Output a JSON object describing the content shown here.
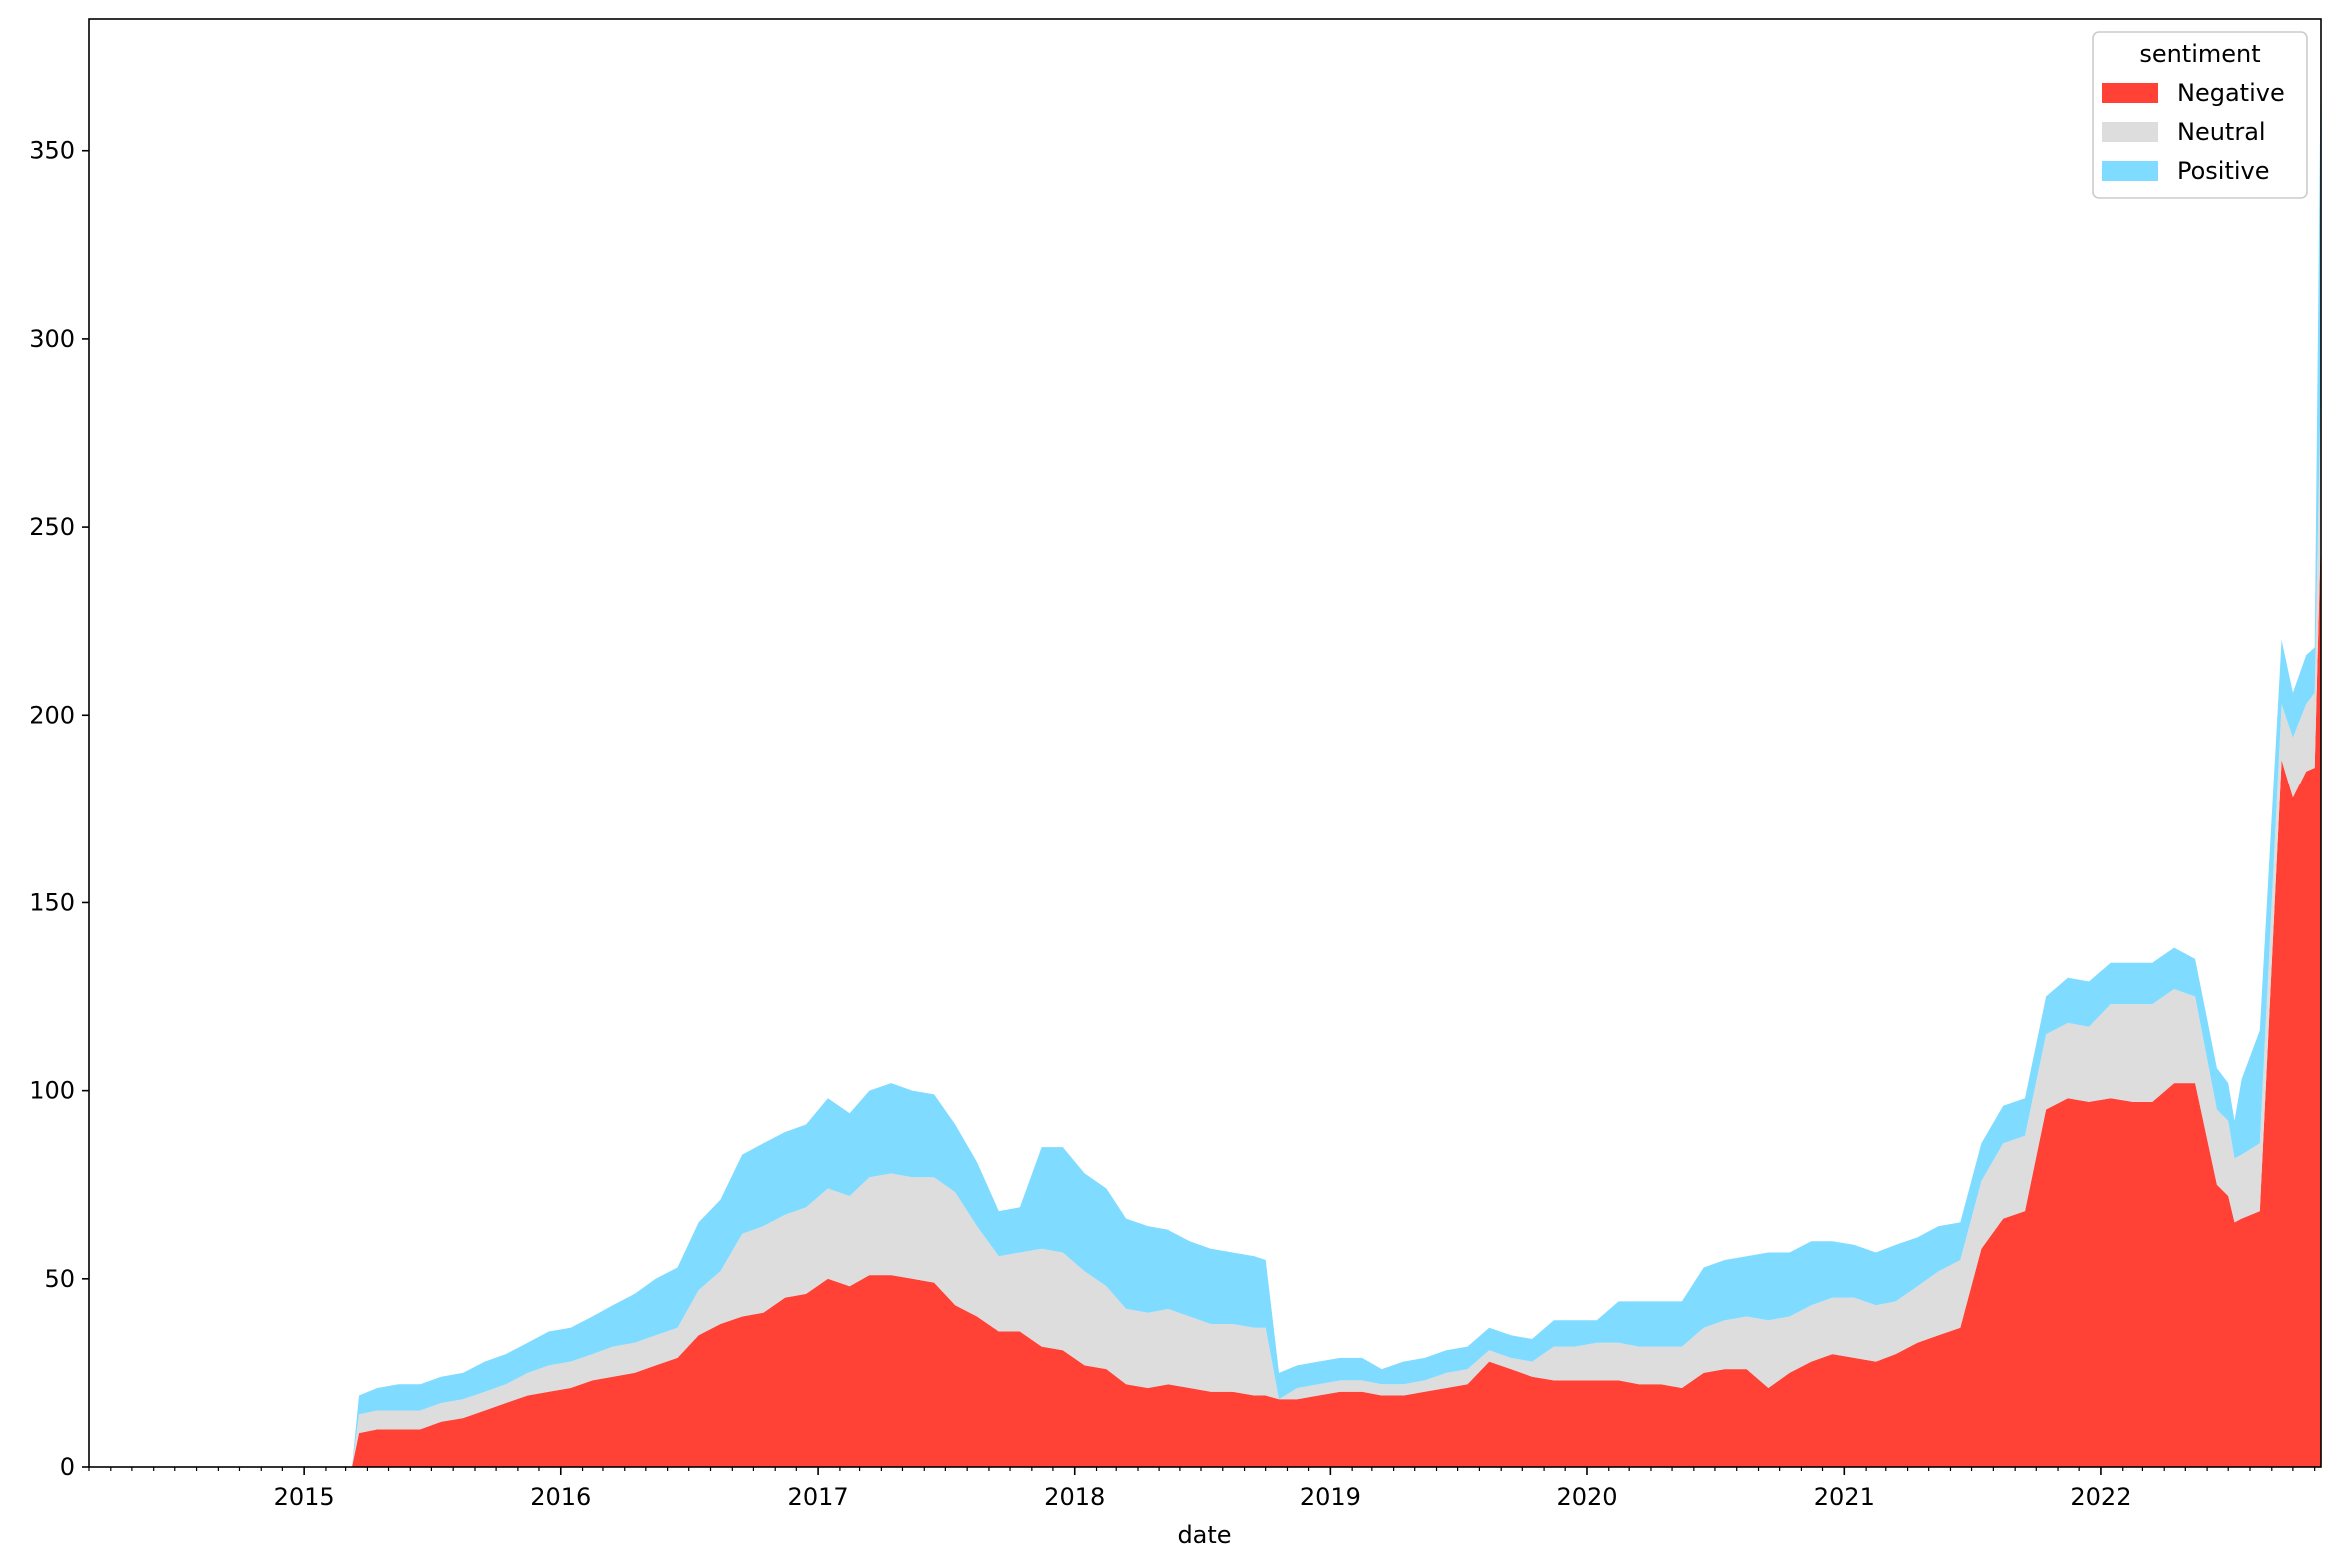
{
  "chart_data": {
    "type": "area",
    "stacked": true,
    "xlabel": "date",
    "ylabel": "",
    "title": "",
    "xlim": [
      "2014-03-01",
      "2022-11-10"
    ],
    "ylim": [
      0,
      385
    ],
    "y_ticks": [
      0,
      50,
      100,
      150,
      200,
      250,
      300,
      350
    ],
    "x_ticks": [
      "2015",
      "2016",
      "2017",
      "2018",
      "2019",
      "2020",
      "2021",
      "2022"
    ],
    "grid": false,
    "legend": {
      "title": "sentiment",
      "position": "top-right",
      "entries": [
        "Negative",
        "Neutral",
        "Positive"
      ]
    },
    "colors": {
      "Negative": "#ff4136",
      "Neutral": "#dddddd",
      "Positive": "#7fdbff"
    },
    "x": [
      "2015-03-10",
      "2015-03-20",
      "2015-04-15",
      "2015-05-15",
      "2015-06-15",
      "2015-07-15",
      "2015-08-15",
      "2015-09-15",
      "2015-10-15",
      "2015-11-15",
      "2015-12-15",
      "2016-01-15",
      "2016-02-15",
      "2016-03-15",
      "2016-04-15",
      "2016-05-15",
      "2016-06-15",
      "2016-07-15",
      "2016-08-15",
      "2016-09-15",
      "2016-10-15",
      "2016-11-15",
      "2016-12-15",
      "2017-01-15",
      "2017-02-15",
      "2017-03-15",
      "2017-04-15",
      "2017-05-15",
      "2017-06-15",
      "2017-07-15",
      "2017-08-15",
      "2017-09-15",
      "2017-10-15",
      "2017-11-15",
      "2017-12-15",
      "2018-01-15",
      "2018-02-15",
      "2018-03-15",
      "2018-04-15",
      "2018-05-15",
      "2018-06-15",
      "2018-07-15",
      "2018-08-15",
      "2018-09-15",
      "2018-10-01",
      "2018-10-20",
      "2018-11-15",
      "2018-12-15",
      "2019-01-15",
      "2019-02-15",
      "2019-03-15",
      "2019-04-15",
      "2019-05-15",
      "2019-06-15",
      "2019-07-15",
      "2019-08-15",
      "2019-09-15",
      "2019-10-15",
      "2019-11-15",
      "2019-12-15",
      "2020-01-15",
      "2020-02-15",
      "2020-03-15",
      "2020-04-15",
      "2020-05-15",
      "2020-06-15",
      "2020-07-15",
      "2020-08-15",
      "2020-09-15",
      "2020-10-15",
      "2020-11-15",
      "2020-12-15",
      "2021-01-15",
      "2021-02-15",
      "2021-03-15",
      "2021-04-15",
      "2021-05-15",
      "2021-06-15",
      "2021-07-15",
      "2021-08-15",
      "2021-09-15",
      "2021-10-15",
      "2021-11-15",
      "2021-12-15",
      "2022-01-15",
      "2022-02-15",
      "2022-03-15",
      "2022-04-15",
      "2022-05-15",
      "2022-06-15",
      "2022-07-01",
      "2022-07-10",
      "2022-07-20",
      "2022-08-15",
      "2022-09-15",
      "2022-10-01",
      "2022-10-20",
      "2022-11-01",
      "2022-11-10"
    ],
    "series": [
      {
        "name": "Negative",
        "values": [
          0,
          9,
          10,
          10,
          10,
          12,
          13,
          15,
          17,
          19,
          20,
          21,
          23,
          24,
          25,
          27,
          29,
          35,
          38,
          40,
          41,
          45,
          46,
          50,
          48,
          51,
          51,
          50,
          49,
          43,
          40,
          36,
          36,
          32,
          31,
          27,
          26,
          22,
          21,
          22,
          21,
          20,
          20,
          19,
          19,
          18,
          18,
          19,
          20,
          20,
          19,
          19,
          20,
          21,
          22,
          28,
          26,
          24,
          23,
          23,
          23,
          23,
          22,
          22,
          21,
          25,
          26,
          26,
          21,
          25,
          28,
          30,
          29,
          28,
          30,
          33,
          35,
          37,
          58,
          66,
          68,
          95,
          98,
          97,
          98,
          97,
          97,
          102,
          102,
          75,
          72,
          65,
          66,
          68,
          188,
          178,
          185,
          186,
          250
        ]
      },
      {
        "name": "Neutral",
        "values": [
          0,
          5,
          5,
          5,
          5,
          5,
          5,
          5,
          5,
          6,
          7,
          7,
          7,
          8,
          8,
          8,
          8,
          12,
          14,
          22,
          23,
          22,
          23,
          24,
          24,
          26,
          27,
          27,
          28,
          30,
          24,
          20,
          21,
          26,
          26,
          25,
          22,
          20,
          20,
          20,
          19,
          18,
          18,
          18,
          18,
          0,
          3,
          3,
          3,
          3,
          3,
          3,
          3,
          4,
          4,
          3,
          3,
          4,
          9,
          9,
          10,
          10,
          10,
          10,
          11,
          12,
          13,
          14,
          18,
          15,
          15,
          15,
          16,
          15,
          14,
          15,
          17,
          18,
          18,
          20,
          20,
          20,
          20,
          20,
          25,
          26,
          26,
          25,
          23,
          20,
          20,
          17,
          17,
          18,
          15,
          16,
          18,
          20,
          40
        ]
      },
      {
        "name": "Positive",
        "values": [
          0,
          5,
          6,
          7,
          7,
          7,
          7,
          8,
          8,
          8,
          9,
          9,
          10,
          11,
          13,
          15,
          16,
          18,
          19,
          21,
          22,
          22,
          22,
          24,
          22,
          23,
          24,
          23,
          22,
          18,
          17,
          12,
          12,
          27,
          28,
          26,
          26,
          24,
          23,
          21,
          20,
          20,
          19,
          19,
          18,
          7,
          6,
          6,
          6,
          6,
          4,
          6,
          6,
          6,
          6,
          6,
          6,
          6,
          7,
          7,
          6,
          11,
          12,
          12,
          12,
          16,
          16,
          16,
          18,
          17,
          17,
          15,
          14,
          14,
          15,
          13,
          12,
          10,
          10,
          10,
          10,
          10,
          12,
          12,
          11,
          11,
          11,
          11,
          10,
          11,
          10,
          10,
          20,
          30,
          17,
          12,
          13,
          12,
          90
        ]
      }
    ]
  }
}
